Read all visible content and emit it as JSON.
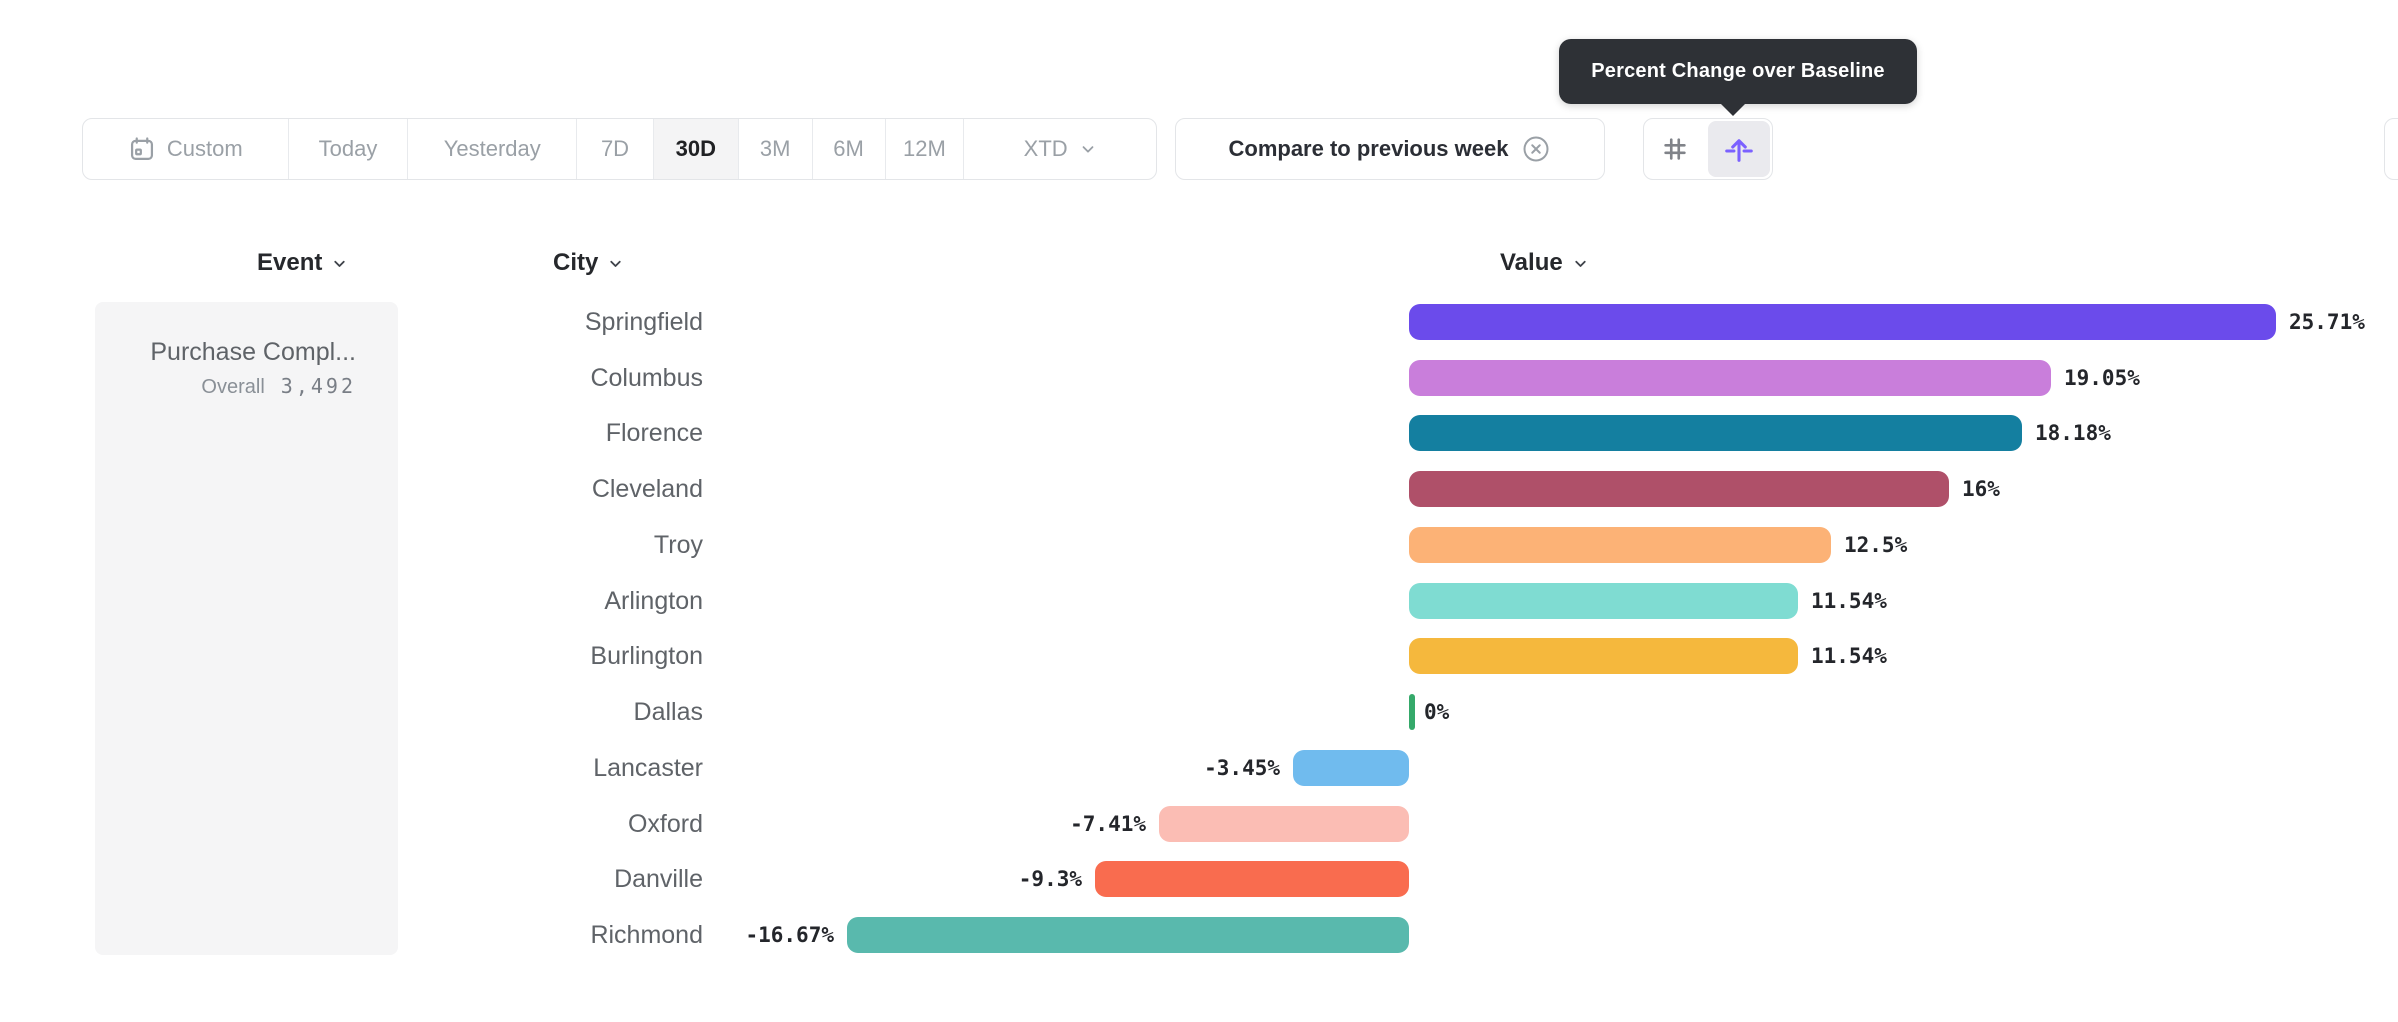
{
  "tooltip": {
    "text": "Percent Change over Baseline"
  },
  "toolbar": {
    "date_ranges": [
      {
        "label": "Custom",
        "icon": "calendar-icon",
        "selected": false
      },
      {
        "label": "Today",
        "selected": false
      },
      {
        "label": "Yesterday",
        "selected": false
      },
      {
        "label": "7D",
        "selected": false
      },
      {
        "label": "30D",
        "selected": true
      },
      {
        "label": "3M",
        "selected": false
      },
      {
        "label": "6M",
        "selected": false
      },
      {
        "label": "12M",
        "selected": false
      },
      {
        "label": "XTD",
        "icon": "chevron-down-icon",
        "selected": false
      }
    ],
    "compare": {
      "label": "Compare to previous week",
      "dismiss_icon": "circle-x-icon"
    },
    "view_toggle": {
      "options": [
        {
          "icon": "grid-icon",
          "active": false
        },
        {
          "icon": "percent-change-baseline-icon",
          "active": true,
          "accent_color": "#7B61FF"
        }
      ]
    }
  },
  "columns": {
    "event": {
      "label": "Event",
      "icon": "chevron-down-icon"
    },
    "city": {
      "label": "City",
      "icon": "chevron-down-icon"
    },
    "value": {
      "label": "Value",
      "icon": "chevron-down-icon"
    }
  },
  "event_panel": {
    "title": "Purchase Compl...",
    "metric_label": "Overall",
    "metric_value": "3,492"
  },
  "chart_data": {
    "type": "bar",
    "orientation": "horizontal",
    "title": "Percent Change over Baseline",
    "series_name": "Purchase Compl...",
    "unit": "percent",
    "baseline": 0,
    "xlim_est": [
      -20,
      28
    ],
    "grid": false,
    "categories": [
      "Springfield",
      "Columbus",
      "Florence",
      "Cleveland",
      "Troy",
      "Arlington",
      "Burlington",
      "Dallas",
      "Lancaster",
      "Oxford",
      "Danville",
      "Richmond"
    ],
    "values": [
      25.71,
      19.05,
      18.18,
      16,
      12.5,
      11.54,
      11.54,
      0,
      -3.45,
      -7.41,
      -9.3,
      -16.67
    ],
    "value_labels": [
      "25.71%",
      "19.05%",
      "18.18%",
      "16%",
      "12.5%",
      "11.54%",
      "11.54%",
      "0%",
      "-3.45%",
      "-7.41%",
      "-9.3%",
      "-16.67%"
    ],
    "bar_colors": [
      "#6B4BEB",
      "#C97EDB",
      "#147FA0",
      "#AF5069",
      "#FCB276",
      "#7FDCD2",
      "#F5B83D",
      "#35A96A",
      "#70BBEE",
      "#FBBDB4",
      "#F96C4F",
      "#59B9AD"
    ]
  }
}
